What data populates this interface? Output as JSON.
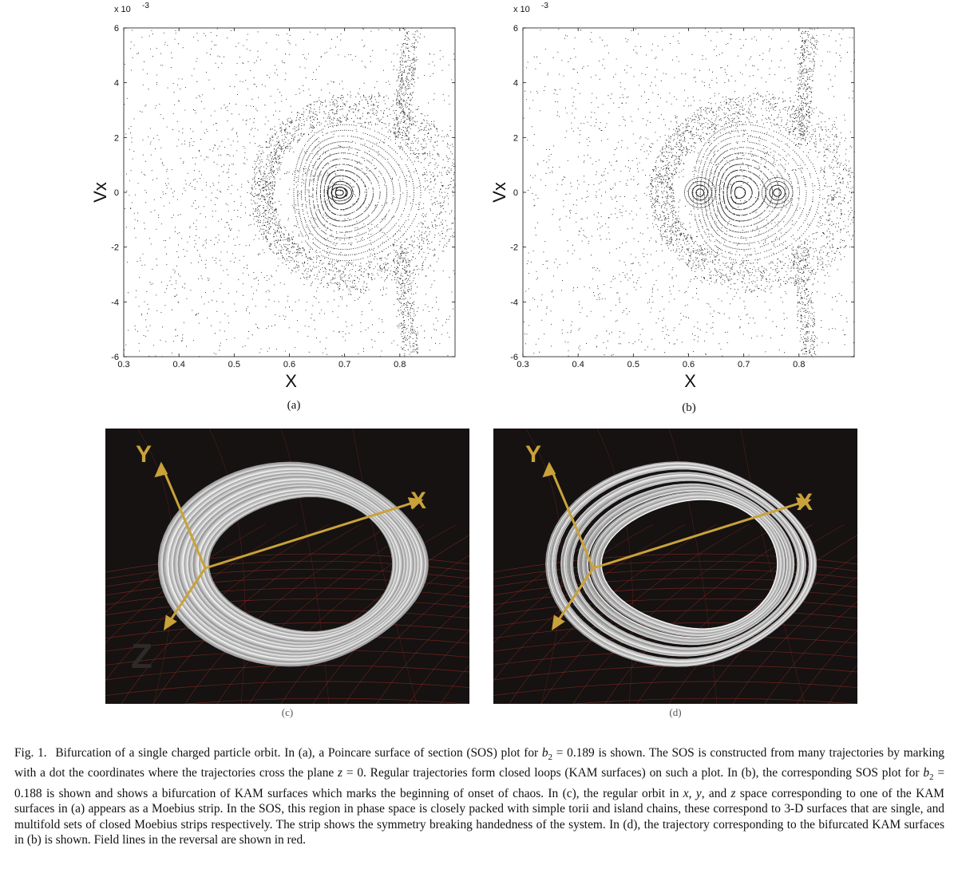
{
  "figure": {
    "panels": [
      {
        "id": "a",
        "label": "(a)",
        "type": "scatter"
      },
      {
        "id": "b",
        "label": "(b)",
        "type": "scatter"
      },
      {
        "id": "c",
        "label": "(c)",
        "type": "render"
      },
      {
        "id": "d",
        "label": "(d)",
        "type": "render"
      }
    ],
    "render_axis_letters": {
      "y": "Y",
      "x": "X",
      "z": "Z"
    },
    "colors": {
      "background_render": "#151211",
      "field_lines": "#8a2a22",
      "axis_arrows": "#c9a23a",
      "orbit": "#d8d8d8"
    }
  },
  "chart_data": [
    {
      "type": "scatter",
      "panel": "(a)",
      "title": "",
      "xlabel": "X",
      "ylabel": "Vx",
      "y_multiplier_label": "x 10",
      "y_multiplier_exp": "-3",
      "xlim": [
        0.3,
        0.9
      ],
      "ylim": [
        -6,
        6
      ],
      "xticks": [
        "0.3",
        "0.4",
        "0.5",
        "0.6",
        "0.7",
        "0.8"
      ],
      "yticks": [
        "-6",
        "-4",
        "-2",
        "0",
        "2",
        "4",
        "6"
      ],
      "islands": [
        {
          "x": 0.69,
          "y": 0
        }
      ],
      "regular_region": {
        "x_min": 0.57,
        "x_max": 0.82,
        "y_max": 2.3
      },
      "series": [
        {
          "values": "SOS dots"
        }
      ]
    },
    {
      "type": "scatter",
      "panel": "(b)",
      "title": "",
      "xlabel": "X",
      "ylabel": "Vx",
      "y_multiplier_label": "x 10",
      "y_multiplier_exp": "-3",
      "xlim": [
        0.3,
        0.9
      ],
      "ylim": [
        -6,
        6
      ],
      "xticks": [
        "0.3",
        "0.4",
        "0.5",
        "0.6",
        "0.7",
        "0.8"
      ],
      "yticks": [
        "-6",
        "-4",
        "-2",
        "0",
        "2",
        "4",
        "6"
      ],
      "islands": [
        {
          "x": 0.62,
          "y": 0
        },
        {
          "x": 0.76,
          "y": 0
        }
      ],
      "regular_region": {
        "x_min": 0.57,
        "x_max": 0.82,
        "y_max": 2.3
      },
      "series": [
        {
          "values": "SOS dots"
        }
      ]
    }
  ],
  "caption": {
    "lead": "Fig. 1.",
    "segments": [
      {
        "t": "text",
        "v": "Bifurcation of a single charged particle orbit. In (a), a Poincare surface of section (SOS) plot for "
      },
      {
        "t": "math",
        "v": "b"
      },
      {
        "t": "sub",
        "v": "2"
      },
      {
        "t": "text",
        "v": " = 0.189 is shown. The SOS is constructed from many trajectories by marking with a dot the coordinates where the trajectories cross the plane "
      },
      {
        "t": "math",
        "v": "z"
      },
      {
        "t": "text",
        "v": " = 0. Regular trajectories form closed loops (KAM surfaces) on such a plot. In (b), the corresponding SOS plot for "
      },
      {
        "t": "math",
        "v": "b"
      },
      {
        "t": "sub",
        "v": "2"
      },
      {
        "t": "text",
        "v": " = 0.188 is shown and shows a bifurcation of KAM surfaces which marks the beginning of onset of chaos. In (c), the regular orbit in "
      },
      {
        "t": "math",
        "v": "x"
      },
      {
        "t": "text",
        "v": ", "
      },
      {
        "t": "math",
        "v": "y"
      },
      {
        "t": "text",
        "v": ", and "
      },
      {
        "t": "math",
        "v": "z"
      },
      {
        "t": "text",
        "v": " space corresponding to one of the KAM surfaces in (a) appears as a Moebius strip. In the SOS, this region in phase space is closely packed with simple torii and island chains, these correspond to 3-D surfaces that are single, and multifold sets of closed Moebius strips respectively. The strip shows the symmetry breaking handedness of the system. In (d), the trajectory corresponding to the bifurcated KAM surfaces in (b) is shown. Field lines in the reversal are shown in red."
      }
    ]
  }
}
